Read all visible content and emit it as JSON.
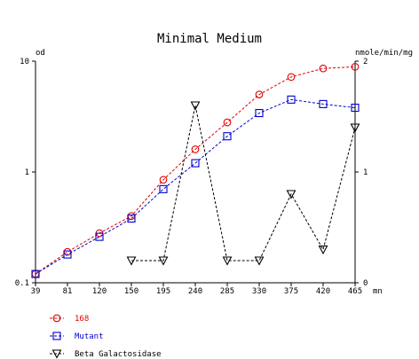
{
  "chart_data": {
    "type": "line",
    "title": "Minimal Medium",
    "left_axis_label": "od",
    "right_axis_label": "nmole/min/mg",
    "x_unit_label": "mn",
    "x": [
      39,
      81,
      120,
      150,
      195,
      240,
      285,
      330,
      375,
      420,
      465
    ],
    "x_tick_labels": [
      "39",
      "81",
      "120",
      "150",
      "195",
      "240",
      "285",
      "330",
      "375",
      "420",
      "465"
    ],
    "left_axis": {
      "scale": "log",
      "ylim": [
        0.1,
        10
      ],
      "tick_labels": [
        "0.1",
        "1",
        "10"
      ],
      "tick_values": [
        0.1,
        1,
        10
      ]
    },
    "right_axis": {
      "scale": "linear",
      "ylim": [
        0,
        2
      ],
      "tick_labels": [
        "0",
        "1",
        "2"
      ],
      "tick_values": [
        0,
        1,
        2
      ]
    },
    "grid": false,
    "legend_position": "bottom-left",
    "series": [
      {
        "name": "168",
        "axis": "left",
        "marker": "circle",
        "color": "#e00000",
        "points": [
          [
            39,
            0.12
          ],
          [
            81,
            0.19
          ],
          [
            120,
            0.28
          ],
          [
            150,
            0.4
          ],
          [
            195,
            0.85
          ],
          [
            240,
            1.6
          ],
          [
            285,
            2.8
          ],
          [
            330,
            5.0
          ],
          [
            375,
            7.2
          ],
          [
            420,
            8.6
          ],
          [
            465,
            8.9
          ]
        ]
      },
      {
        "name": "Mutant",
        "axis": "left",
        "marker": "square",
        "color": "#0000cc",
        "points": [
          [
            39,
            0.12
          ],
          [
            81,
            0.18
          ],
          [
            120,
            0.26
          ],
          [
            150,
            0.38
          ],
          [
            195,
            0.7
          ],
          [
            240,
            1.2
          ],
          [
            285,
            2.1
          ],
          [
            330,
            3.4
          ],
          [
            375,
            4.5
          ],
          [
            420,
            4.1
          ],
          [
            465,
            3.8
          ]
        ]
      },
      {
        "name": "Beta Galactosidase",
        "axis": "right",
        "marker": "triangle-down",
        "color": "#000000",
        "points": [
          [
            150,
            0.2
          ],
          [
            195,
            0.2
          ],
          [
            240,
            1.6
          ],
          [
            285,
            0.2
          ],
          [
            330,
            0.2
          ],
          [
            375,
            0.8
          ],
          [
            420,
            0.3
          ],
          [
            465,
            1.4
          ]
        ]
      }
    ]
  }
}
